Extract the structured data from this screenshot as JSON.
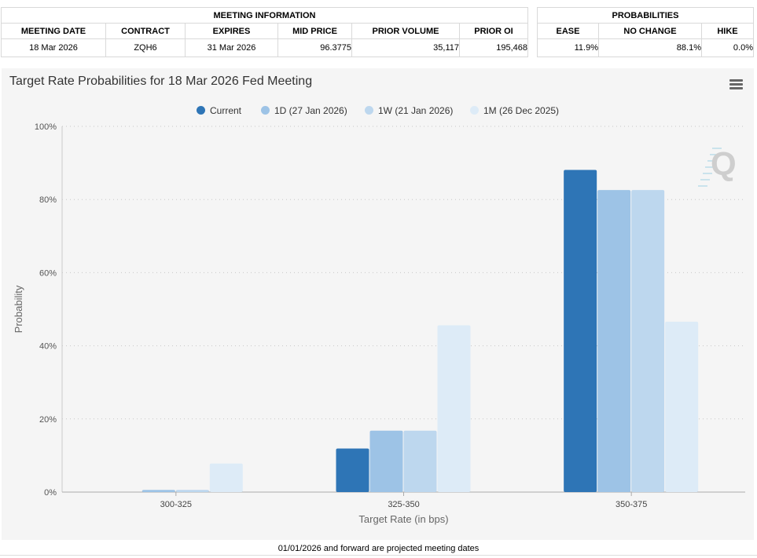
{
  "meeting_info": {
    "header": "MEETING INFORMATION",
    "columns": [
      "MEETING DATE",
      "CONTRACT",
      "EXPIRES",
      "MID PRICE",
      "PRIOR VOLUME",
      "PRIOR OI"
    ],
    "row": [
      "18 Mar 2026",
      "ZQH6",
      "31 Mar 2026",
      "96.3775",
      "35,117",
      "195,468"
    ]
  },
  "probabilities": {
    "header": "PROBABILITIES",
    "columns": [
      "EASE",
      "NO CHANGE",
      "HIKE"
    ],
    "row": [
      "11.9%",
      "88.1%",
      "0.0%"
    ]
  },
  "chart_title": "Target Rate Probabilities for 18 Mar 2026 Fed Meeting",
  "menu_icon": "hamburger-menu-icon",
  "watermark_icon": "q-logo-icon",
  "footer_note": "01/01/2026 and forward are projected meeting dates",
  "chart_data": {
    "type": "bar",
    "title": "Target Rate Probabilities for 18 Mar 2026 Fed Meeting",
    "xlabel": "Target Rate (in bps)",
    "ylabel": "Probability",
    "categories": [
      "300-325",
      "325-350",
      "350-375"
    ],
    "ylim": [
      0,
      100
    ],
    "yticks": [
      "0%",
      "20%",
      "40%",
      "60%",
      "80%",
      "100%"
    ],
    "grid": true,
    "legend_position": "top-center",
    "series": [
      {
        "name": "Current",
        "color": "#2e75b6",
        "values": [
          0.0,
          11.9,
          88.1
        ]
      },
      {
        "name": "1D (27 Jan 2026)",
        "color": "#9dc3e6",
        "values": [
          0.6,
          16.8,
          82.6
        ]
      },
      {
        "name": "1W (21 Jan 2026)",
        "color": "#bdd7ee",
        "values": [
          0.6,
          16.8,
          82.6
        ]
      },
      {
        "name": "1M (26 Dec 2025)",
        "color": "#ddebf7",
        "values": [
          7.8,
          45.6,
          46.6
        ]
      }
    ]
  }
}
